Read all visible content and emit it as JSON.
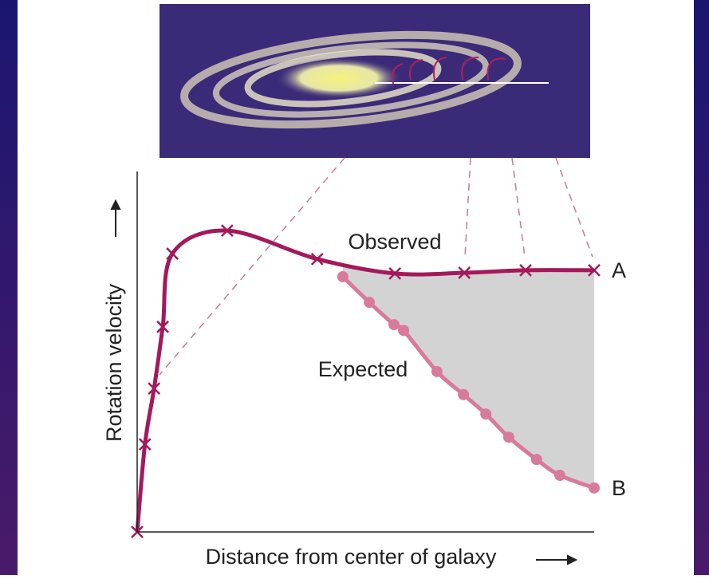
{
  "chart_data": {
    "type": "line",
    "xlabel": "Distance from center of galaxy",
    "ylabel": "Rotation velocity",
    "xlim": [
      0,
      100
    ],
    "ylim": [
      0,
      100
    ],
    "shade_between": true,
    "shade_color": "#d3d3d3",
    "series": [
      {
        "name": "Observed",
        "color": "#a3195b",
        "marker": "x",
        "end_label": "A",
        "x": [
          0,
          1.7,
          3.7,
          5.6,
          7.7,
          19.7,
          39.4,
          56.4,
          71.6,
          85.0,
          100
        ],
        "values": [
          0,
          24.3,
          39.8,
          56.9,
          77.2,
          83.6,
          75.7,
          71.7,
          71.9,
          72.6,
          72.6
        ]
      },
      {
        "name": "Expected",
        "color": "#d97a9c",
        "marker": "circle",
        "end_label": "B",
        "x": [
          45.0,
          50.8,
          56.2,
          58.3,
          65.6,
          71.4,
          76.3,
          81.3,
          87.4,
          92.5,
          100
        ],
        "values": [
          70.8,
          63.7,
          57.5,
          55.9,
          44.5,
          38.1,
          32.7,
          26.3,
          20.1,
          15.7,
          12.2
        ]
      }
    ]
  }
}
